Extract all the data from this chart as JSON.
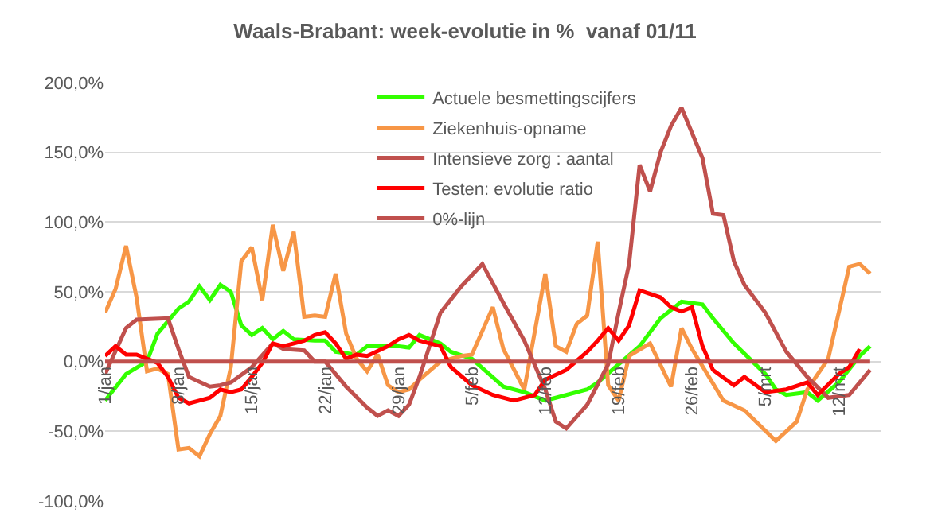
{
  "chart_data": {
    "type": "line",
    "title": "Waals-Brabant: week-evolutie in %  vanaf 01/11",
    "xlim": [
      "--01-01",
      "--03-16"
    ],
    "xticks": [
      {
        "value": "--01-01",
        "label": "1/jan"
      },
      {
        "value": "--01-08",
        "label": "8/jan"
      },
      {
        "value": "--01-15",
        "label": "15/jan"
      },
      {
        "value": "--01-22",
        "label": "22/jan"
      },
      {
        "value": "--01-29",
        "label": "29/jan"
      },
      {
        "value": "--02-05",
        "label": "5/feb"
      },
      {
        "value": "--02-12",
        "label": "12/feb"
      },
      {
        "value": "--02-19",
        "label": "19/feb"
      },
      {
        "value": "--02-26",
        "label": "26/feb"
      },
      {
        "value": "--03-05",
        "label": "5/mrt"
      },
      {
        "value": "--03-12",
        "label": "12/mrt"
      }
    ],
    "ylim": [
      -100,
      200
    ],
    "yticks": [
      {
        "value": -100,
        "label": "-100,0%"
      },
      {
        "value": -50,
        "label": "-50,0%"
      },
      {
        "value": 0,
        "label": "0,0%"
      },
      {
        "value": 50,
        "label": "50,0%"
      },
      {
        "value": 100,
        "label": "100,0%"
      },
      {
        "value": 150,
        "label": "150,0%"
      },
      {
        "value": 200,
        "label": "200,0%"
      }
    ],
    "grid": "y",
    "legend": "top",
    "marker": "none",
    "line_style": "solid",
    "series": [
      {
        "name": "Actuele besmettingscijfers",
        "color": "#33ff00",
        "x": [
          "--01-01",
          "--01-03",
          "--01-05",
          "--01-06",
          "--01-08",
          "--01-09",
          "--01-10",
          "--01-11",
          "--01-12",
          "--01-13",
          "--01-14",
          "--01-15",
          "--01-16",
          "--01-17",
          "--01-18",
          "--01-19",
          "--01-21",
          "--01-22",
          "--01-23",
          "--01-25",
          "--01-26",
          "--01-28",
          "--01-29",
          "--01-30",
          "--01-31",
          "--02-02",
          "--02-03",
          "--02-05",
          "--02-08",
          "--02-10",
          "--02-12",
          "--02-16",
          "--02-17",
          "--02-19",
          "--02-21",
          "--02-23",
          "--02-25",
          "--02-27",
          "--02-28",
          "--03-02",
          "--03-05",
          "--03-06",
          "--03-07",
          "--03-09",
          "--03-10",
          "--03-12",
          "--03-14",
          "--03-15"
        ],
        "values": [
          -28,
          -9,
          0,
          20,
          38,
          43,
          54,
          44,
          55,
          50,
          26,
          19,
          24,
          16,
          22,
          16,
          15,
          15,
          7,
          5,
          11,
          11,
          11,
          10,
          19,
          13,
          7,
          2,
          -18,
          -22,
          -28,
          -20,
          -15,
          -2,
          11,
          31,
          43,
          41,
          31,
          13,
          -9,
          -20,
          -24,
          -22,
          -28,
          -15,
          4,
          11
        ]
      },
      {
        "name": "Ziekenhuis-opname",
        "color": "#f79646",
        "x": [
          "--01-01",
          "--01-02",
          "--01-03",
          "--01-04",
          "--01-05",
          "--01-06",
          "--01-07",
          "--01-08",
          "--01-09",
          "--01-10",
          "--01-11",
          "--01-12",
          "--01-13",
          "--01-14",
          "--01-15",
          "--01-16",
          "--01-17",
          "--01-18",
          "--01-19",
          "--01-20",
          "--01-21",
          "--01-22",
          "--01-23",
          "--01-24",
          "--01-25",
          "--01-26",
          "--01-27",
          "--01-28",
          "--01-29",
          "--01-30",
          "--01-31",
          "--02-02",
          "--02-04",
          "--02-05",
          "--02-07",
          "--02-08",
          "--02-10",
          "--02-12",
          "--02-13",
          "--02-14",
          "--02-15",
          "--02-16",
          "--02-17",
          "--02-18",
          "--02-19",
          "--02-20",
          "--02-22",
          "--02-24",
          "--02-25",
          "--02-26",
          "--03-01",
          "--03-03",
          "--03-06",
          "--03-08",
          "--03-09",
          "--03-11",
          "--03-13",
          "--03-14",
          "--03-15"
        ],
        "values": [
          35,
          52,
          83,
          46,
          -7,
          -5,
          -9,
          -63,
          -62,
          -68,
          -52,
          -39,
          -4,
          72,
          82,
          44,
          98,
          65,
          93,
          32,
          33,
          32,
          63,
          20,
          2,
          -7,
          5,
          -17,
          -22,
          -20,
          -13,
          0,
          4,
          5,
          39,
          9,
          -20,
          63,
          11,
          7,
          27,
          33,
          86,
          -17,
          -28,
          4,
          13,
          -18,
          24,
          9,
          -28,
          -35,
          -57,
          -43,
          -20,
          2,
          68,
          70,
          63
        ]
      },
      {
        "name": "Intensieve zorg : aantal",
        "color": "#c0504d",
        "x": [
          "--01-01",
          "--01-03",
          "--01-04",
          "--01-07",
          "--01-08",
          "--01-09",
          "--01-11",
          "--01-12",
          "--01-13",
          "--01-15",
          "--01-17",
          "--01-18",
          "--01-20",
          "--01-21",
          "--01-22",
          "--01-24",
          "--01-26",
          "--01-27",
          "--01-28",
          "--01-29",
          "--01-30",
          "--01-31",
          "--02-02",
          "--02-04",
          "--02-06",
          "--02-08",
          "--02-10",
          "--02-12",
          "--02-13",
          "--02-14",
          "--02-16",
          "--02-18",
          "--02-19",
          "--02-20",
          "--02-21",
          "--02-22",
          "--02-23",
          "--02-24",
          "--02-25",
          "--02-27",
          "--02-28",
          "--03-01",
          "--03-02",
          "--03-03",
          "--03-05",
          "--03-07",
          "--03-09",
          "--03-11",
          "--03-13",
          "--03-15"
        ],
        "values": [
          -9,
          24,
          30,
          31,
          9,
          -11,
          -18,
          -17,
          -15,
          -4,
          13,
          9,
          8,
          0,
          0,
          -18,
          -33,
          -39,
          -35,
          -39,
          -31,
          -11,
          35,
          54,
          70,
          42,
          15,
          -20,
          -43,
          -48,
          -31,
          -2,
          35,
          70,
          141,
          122,
          150,
          169,
          182,
          146,
          106,
          105,
          72,
          55,
          35,
          7,
          -11,
          -26,
          -24,
          -6
        ]
      },
      {
        "name": "Testen: evolutie ratio",
        "color": "#ff0000",
        "x": [
          "--01-01",
          "--01-02",
          "--01-03",
          "--01-04",
          "--01-06",
          "--01-07",
          "--01-08",
          "--01-09",
          "--01-11",
          "--01-12",
          "--01-13",
          "--01-14",
          "--01-15",
          "--01-16",
          "--01-17",
          "--01-18",
          "--01-20",
          "--01-21",
          "--01-22",
          "--01-23",
          "--01-24",
          "--01-25",
          "--01-26",
          "--01-28",
          "--01-29",
          "--01-30",
          "--01-31",
          "--02-02",
          "--02-03",
          "--02-05",
          "--02-07",
          "--02-09",
          "--02-11",
          "--02-12",
          "--02-14",
          "--02-16",
          "--02-17",
          "--02-18",
          "--02-19",
          "--02-20",
          "--02-21",
          "--02-23",
          "--02-24",
          "--02-25",
          "--02-26",
          "--02-27",
          "--02-28",
          "--03-02",
          "--03-03",
          "--03-05",
          "--03-07",
          "--03-09",
          "--03-10",
          "--03-12",
          "--03-13",
          "--03-14"
        ],
        "values": [
          4,
          11,
          5,
          5,
          -1,
          -11,
          -26,
          -30,
          -26,
          -20,
          -22,
          -20,
          -11,
          -1,
          13,
          11,
          15,
          19,
          21,
          13,
          2,
          5,
          4,
          11,
          16,
          19,
          15,
          11,
          -4,
          -17,
          -24,
          -28,
          -24,
          -13,
          -6,
          7,
          15,
          24,
          15,
          26,
          51,
          46,
          39,
          36,
          39,
          11,
          -6,
          -17,
          -11,
          -22,
          -20,
          -15,
          -24,
          -9,
          -4,
          9
        ]
      },
      {
        "name": "0%-lijn",
        "color": "#c0504d",
        "x": [
          "--01-01",
          "--03-15"
        ],
        "values": [
          0,
          0
        ]
      }
    ]
  }
}
